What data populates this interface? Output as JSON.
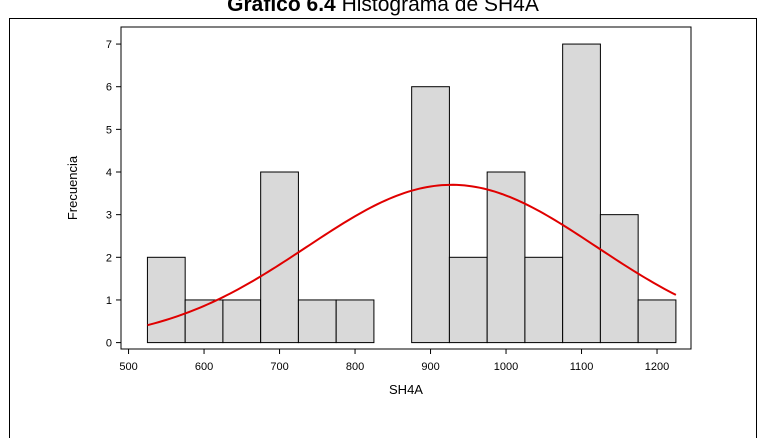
{
  "chart_data": {
    "type": "bar",
    "title_bold": "Gráfico 6.4",
    "title_rest": " Histograma de SH4A",
    "xlabel": "SH4A",
    "ylabel": "Frecuencia",
    "bin_width": 50,
    "bins": [
      {
        "start": 525,
        "end": 575,
        "count": 2
      },
      {
        "start": 575,
        "end": 625,
        "count": 1
      },
      {
        "start": 625,
        "end": 675,
        "count": 1
      },
      {
        "start": 675,
        "end": 725,
        "count": 4
      },
      {
        "start": 725,
        "end": 775,
        "count": 1
      },
      {
        "start": 775,
        "end": 825,
        "count": 1
      },
      {
        "start": 825,
        "end": 875,
        "count": 0
      },
      {
        "start": 875,
        "end": 925,
        "count": 6
      },
      {
        "start": 925,
        "end": 975,
        "count": 2
      },
      {
        "start": 975,
        "end": 1025,
        "count": 4
      },
      {
        "start": 1025,
        "end": 1075,
        "count": 2
      },
      {
        "start": 1075,
        "end": 1125,
        "count": 7
      },
      {
        "start": 1125,
        "end": 1175,
        "count": 3
      },
      {
        "start": 1175,
        "end": 1225,
        "count": 1
      }
    ],
    "xticks": [
      "500",
      "600",
      "700",
      "800",
      "900",
      "1000",
      "1100",
      "1200"
    ],
    "yticks": [
      "0",
      "1",
      "2",
      "3",
      "4",
      "5",
      "6",
      "7"
    ],
    "xlim": [
      490,
      1245
    ],
    "ylim": [
      -0.15,
      7.4
    ],
    "fit_curve": {
      "type": "normal",
      "mean": 928,
      "peak": 3.7,
      "sd": 192,
      "x_range": [
        525,
        1225
      ],
      "color": "#e00000"
    },
    "bar_color": "#d9d9d9",
    "grid": false
  }
}
